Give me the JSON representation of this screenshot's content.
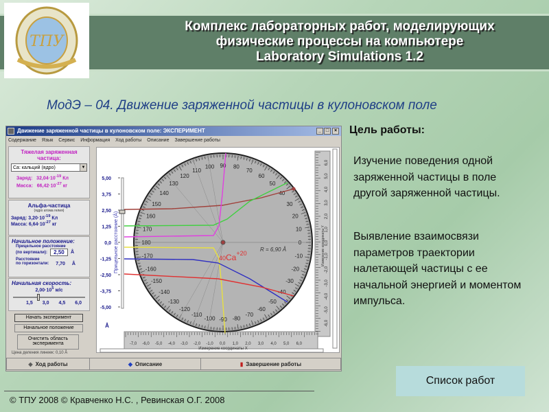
{
  "header": {
    "title_lines": [
      "Комплекс лабораторных работ, моделирующих",
      "физические процессы на компьютере",
      "Laboratory Simulations 1.2"
    ],
    "logo_text": "ТОМСКИЙ ПОЛИТЕХНИЧЕСКИЙ УНИВЕРСИТЕТ · TOMSK POLYTECHNIC UNIVERSITY"
  },
  "subtitle": "МодЭ – 04. Движение заряженной частицы в кулоновском поле",
  "goal": {
    "heading": "Цель работы:",
    "paragraphs": [
      "Изучение поведения одной заряженной частицы в поле другой заряженной частицы.",
      "Выявление взаимосвязи параметров траектории налетающей частицы с ее начальной энергией и моментом импульса."
    ]
  },
  "list_button": "Список работ",
  "footer": "© ТПУ 2008 © Кравченко Н.С. , Ревинская О.Г. 2008",
  "app": {
    "title": "Движение заряженной частицы в кулоновском поле: ЭКСПЕРИМЕНТ",
    "controls": [
      "_",
      "□",
      "×"
    ],
    "menu": [
      "Содержание",
      "Язык",
      "Сервис",
      "Информация",
      "Ход работы",
      "Описание",
      "Завершение работы"
    ],
    "heavy": {
      "heading": "Тяжелая заряженная частица:",
      "select": "Ca: кальций (ядро)",
      "charge_label": "Заряд:",
      "charge": "32,04·10",
      "charge_exp": "-19",
      "charge_unit": "Кл",
      "mass_label": "Масса:",
      "mass": "66,42·10",
      "mass_exp": "-27",
      "mass_unit": "кг"
    },
    "alpha": {
      "heading": "Альфа-частица",
      "note": "(ядро атома гелия)",
      "charge_label": "Заряд:",
      "charge": "3,20·10",
      "charge_exp": "-19",
      "charge_unit": "Кл",
      "mass_label": "Масса:",
      "mass": "6,64·10",
      "mass_exp": "-27",
      "mass_unit": "кг"
    },
    "position": {
      "heading": "Начальное положение:",
      "impact_label1": "Прицельное расстояние",
      "impact_label2": "(по вертикали):",
      "impact_value": "2,50",
      "unit": "Å",
      "horiz_label1": "Расстояние",
      "horiz_label2": "по горизонтали:",
      "horiz_value": "7,70"
    },
    "speed": {
      "heading": "Начальная скорость:",
      "value": "2,00·10",
      "exp": "5",
      "unit": "м/с",
      "ticks": [
        "1,5",
        "3,0",
        "4,5",
        "6,0"
      ],
      "slider_fraction": 0.33
    },
    "buttons": {
      "start": "Начать эксперимент",
      "reset": "Начальное положение",
      "clear": "Очистить область эксперимента"
    },
    "scale_note": "Цена деления линеек: 0,10 Å",
    "tabs": [
      "Ход работы",
      "Описание",
      "Завершение работы"
    ],
    "plot": {
      "y_axis_title": "Прицельное расстояние (Å)",
      "y_ticks": [
        "5,00",
        "3,75",
        "2,50",
        "1,25",
        "0,0",
        "-1,25",
        "-2,50",
        "-3,75",
        "-5,00"
      ],
      "y_unit": "Å",
      "dial_labels": [
        "0",
        "10",
        "20",
        "30",
        "40",
        "50",
        "60",
        "70",
        "80",
        "90",
        "100",
        "110",
        "120",
        "130",
        "140",
        "150",
        "160",
        "170",
        "180",
        "-170",
        "-160",
        "-150",
        "-140",
        "-130",
        "-120",
        "-110",
        "-100",
        "-90",
        "-80",
        "-70",
        "-60",
        "-50",
        "-40",
        "-30",
        "-20",
        "-10"
      ],
      "x_ticks": [
        "-7,0",
        "-6,0",
        "-5,0",
        "-4,0",
        "-3,0",
        "-2,0",
        "-1,0",
        "0,0",
        "1,0",
        "2,0",
        "3,0",
        "4,0",
        "5,0",
        "6,0"
      ],
      "x_title": "Измерение координаты X",
      "ry_ticks": [
        "6,0",
        "5,0",
        "4,0",
        "3,0",
        "2,0",
        "1,0",
        "0,0",
        "-1,0",
        "-2,0",
        "-3,0",
        "-4,0",
        "-5,0",
        "-6,0"
      ],
      "ry_title": "Измерение координаты Y",
      "nucleus_mass": "40",
      "nucleus": "Ca",
      "nucleus_charge": "+20",
      "radius": "R = 6,90 Å",
      "colors": {
        "brown": "#a0403a",
        "green": "#40d040",
        "magenta": "#e040e0",
        "yellow": "#e8e040",
        "blue": "#3030c0",
        "red": "#e03030"
      }
    }
  }
}
